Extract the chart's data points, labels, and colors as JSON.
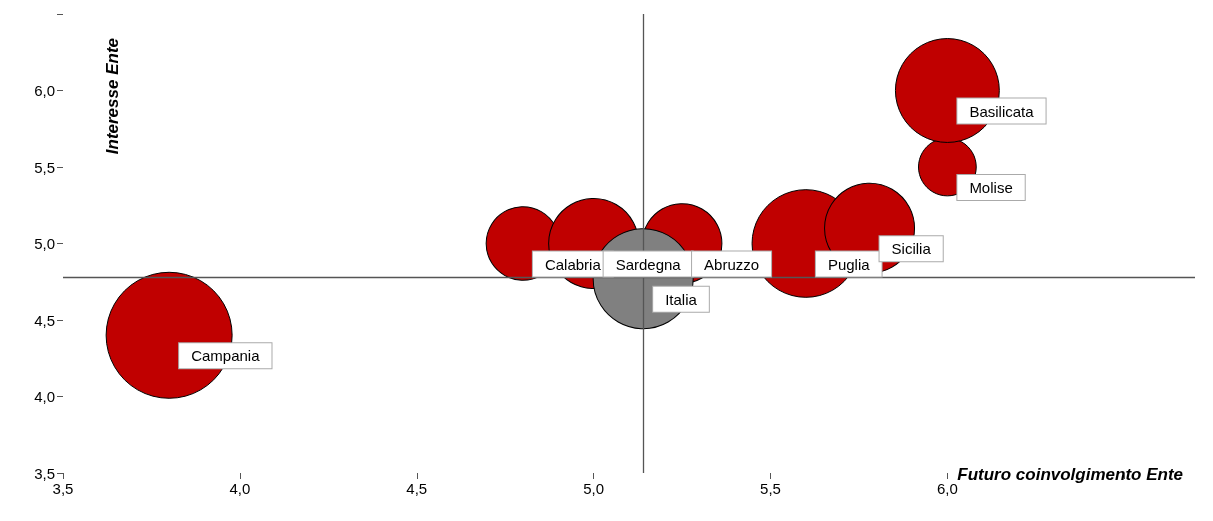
{
  "chart_data": {
    "type": "bubble",
    "xlabel": "Futuro coinvolgimento Ente",
    "ylabel": "Interesse Ente",
    "x": [
      3.8,
      4.8,
      5.0,
      5.25,
      5.14,
      5.6,
      5.78,
      6.0,
      6.0
    ],
    "values": [
      4.4,
      5.0,
      5.0,
      5.0,
      4.77,
      5.0,
      5.1,
      5.5,
      6.0
    ],
    "sizes": [
      1,
      0.34,
      0.51,
      0.4,
      0.63,
      0.73,
      0.51,
      0.21,
      0.68
    ],
    "colors": [
      "#c00000",
      "#c00000",
      "#c00000",
      "#c00000",
      "#808080",
      "#c00000",
      "#c00000",
      "#c00000",
      "#c00000"
    ],
    "annotations": [
      {
        "text": "Campania",
        "x": 3.8,
        "y": 4.4
      },
      {
        "text": "Calabria",
        "x": 4.8,
        "y": 5.0
      },
      {
        "text": "Sardegna",
        "x": 5.0,
        "y": 5.0
      },
      {
        "text": "Abruzzo",
        "x": 5.25,
        "y": 5.0
      },
      {
        "text": "Italia",
        "x": 5.14,
        "y": 4.77
      },
      {
        "text": "Puglia",
        "x": 5.6,
        "y": 5.0
      },
      {
        "text": "Sicilia",
        "x": 5.78,
        "y": 5.1
      },
      {
        "text": "Molise",
        "x": 6.0,
        "y": 5.5
      },
      {
        "text": "Basilicata",
        "x": 6.0,
        "y": 6.0
      }
    ],
    "xlim": [
      3.5,
      6.7
    ],
    "xticks": [
      {
        "value": 3.5,
        "label": "3,5"
      },
      {
        "value": 4.0,
        "label": "4,0"
      },
      {
        "value": 4.5,
        "label": "4,5"
      },
      {
        "value": 5.0,
        "label": "5,0"
      },
      {
        "value": 5.5,
        "label": "5,5"
      },
      {
        "value": 6.0,
        "label": "6,0"
      },
      {
        "value": 6.5,
        "label": null
      }
    ],
    "ylim": [
      3.5,
      6.5
    ],
    "yticks": [
      {
        "value": 3.5,
        "label": "3,5"
      },
      {
        "value": 4.0,
        "label": "4,0"
      },
      {
        "value": 4.5,
        "label": "4,5"
      },
      {
        "value": 5.0,
        "label": "5,0"
      },
      {
        "value": 5.5,
        "label": "5,5"
      },
      {
        "value": 6.0,
        "label": "6,0"
      },
      {
        "value": 6.5,
        "label": null
      }
    ],
    "ref_lines": [
      {
        "axis": "x",
        "value": 5.14
      },
      {
        "axis": "y",
        "value": 4.78
      }
    ],
    "grid": false
  }
}
